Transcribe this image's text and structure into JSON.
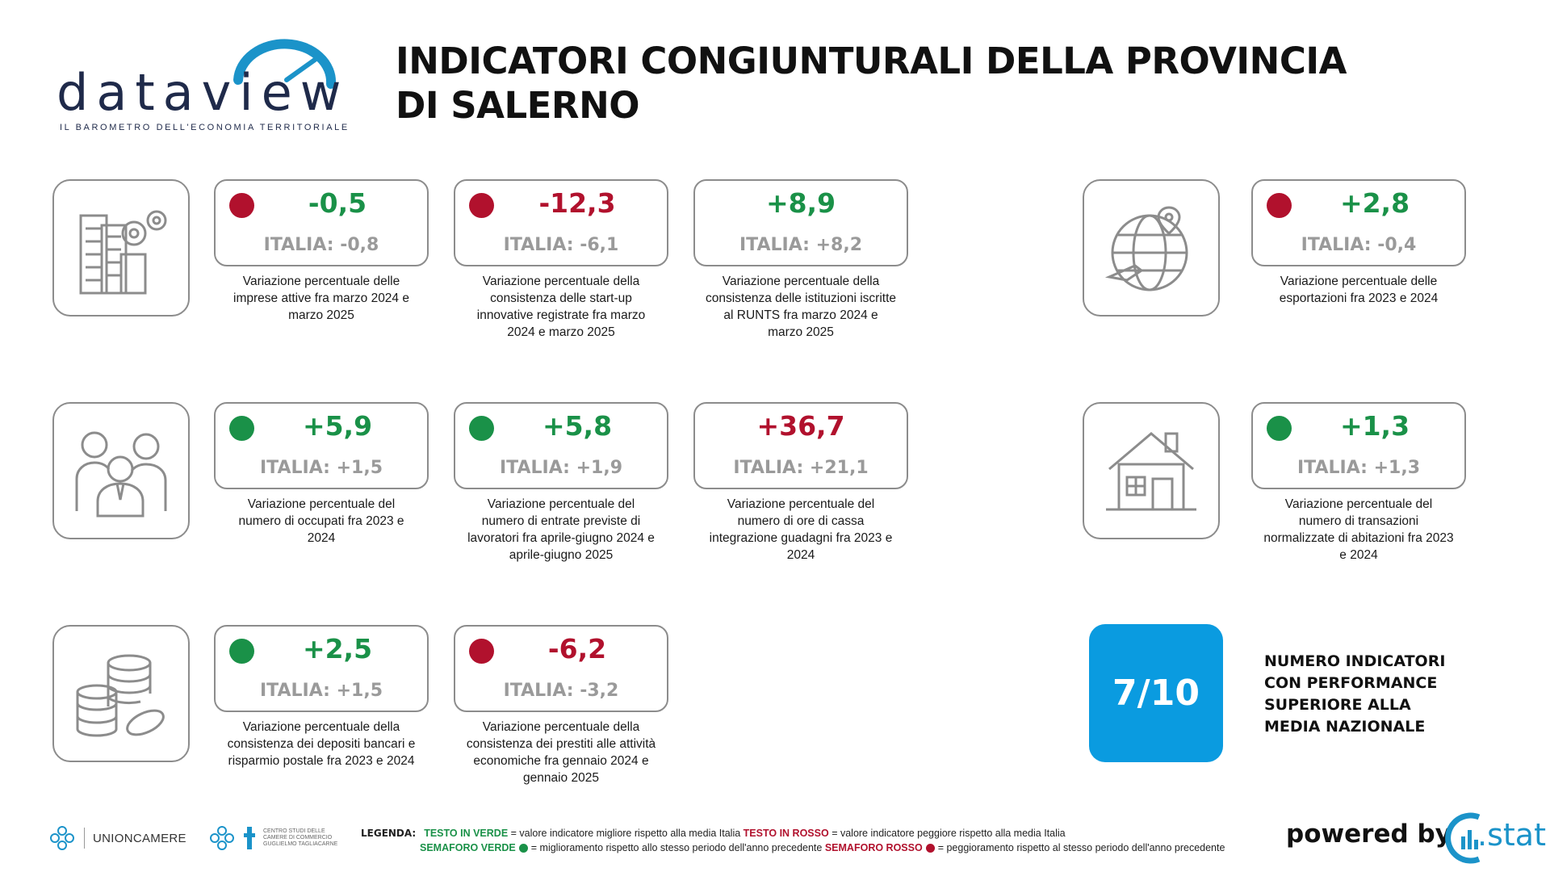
{
  "brand": {
    "name": "dataview",
    "tagline": "IL BAROMETRO DELL'ECONOMIA TERRITORIALE"
  },
  "title": "INDICATORI CONGIUNTURALI DELLA PROVINCIA DI SALERNO",
  "colors": {
    "green": "#1a9148",
    "red": "#b1112d",
    "blue": "#0a9be0",
    "gray": "#8c8c8c"
  },
  "icons": {
    "business": "buildings-gears-icon",
    "export": "globe-plane-icon",
    "people": "people-group-icon",
    "house": "house-icon",
    "money": "coins-stack-icon"
  },
  "indicators": [
    {
      "value": "-0,5",
      "value_color": "green",
      "dot": "red",
      "italia": "ITALIA: -0,8",
      "desc": "Variazione percentuale delle imprese attive fra marzo 2024 e marzo 2025"
    },
    {
      "value": "-12,3",
      "value_color": "red",
      "dot": "red",
      "italia": "ITALIA: -6,1",
      "desc": "Variazione percentuale della consistenza delle start-up innovative registrate fra marzo 2024 e marzo 2025"
    },
    {
      "value": "+8,9",
      "value_color": "green",
      "dot": "none",
      "italia": "ITALIA: +8,2",
      "desc": "Variazione percentuale della consistenza delle istituzioni iscritte al RUNTS fra marzo 2024 e marzo 2025"
    },
    {
      "value": "+2,8",
      "value_color": "green",
      "dot": "red",
      "italia": "ITALIA: -0,4",
      "desc": "Variazione percentuale delle esportazioni fra 2023 e 2024"
    },
    {
      "value": "+5,9",
      "value_color": "green",
      "dot": "green",
      "italia": "ITALIA: +1,5",
      "desc": "Variazione percentuale del numero di occupati fra 2023 e 2024"
    },
    {
      "value": "+5,8",
      "value_color": "green",
      "dot": "green",
      "italia": "ITALIA: +1,9",
      "desc": "Variazione percentuale del numero di entrate previste di lavoratori fra aprile-giugno 2024 e aprile-giugno 2025"
    },
    {
      "value": "+36,7",
      "value_color": "red",
      "dot": "none",
      "italia": "ITALIA: +21,1",
      "desc": "Variazione percentuale del numero di ore di cassa integrazione guadagni fra 2023 e 2024"
    },
    {
      "value": "+1,3",
      "value_color": "green",
      "dot": "green",
      "italia": "ITALIA: +1,3",
      "desc": "Variazione percentuale del numero di transazioni normalizzate di abitazioni fra 2023 e 2024"
    },
    {
      "value": "+2,5",
      "value_color": "green",
      "dot": "green",
      "italia": "ITALIA: +1,5",
      "desc": "Variazione percentuale della consistenza dei depositi bancari e risparmio postale fra 2023 e 2024"
    },
    {
      "value": "-6,2",
      "value_color": "red",
      "dot": "red",
      "italia": "ITALIA: -3,2",
      "desc": "Variazione percentuale della consistenza dei prestiti alle attività economiche fra gennaio 2024 e gennaio 2025"
    }
  ],
  "score": {
    "value": "7/10",
    "label": "NUMERO INDICATORI CON PERFORMANCE SUPERIORE ALLA MEDIA NAZIONALE"
  },
  "footer": {
    "org1": "UNIONCAMERE",
    "org2": "CENTRO STUDI DELLE CAMERE DI COMMERCIO GUGLIELMO TAGLIACARNE",
    "legend_title": "LEGENDA:",
    "legend_green_text": "TESTO IN VERDE",
    "legend_green_desc": "= valore indicatore migliore rispetto alla media Italia",
    "legend_red_text": "TESTO IN ROSSO",
    "legend_red_desc": "= valore indicatore peggiore rispetto alla media Italia",
    "legend_green_dot": "SEMAFORO VERDE",
    "legend_green_dot_desc": "= miglioramento rispetto allo stesso periodo dell'anno precedente",
    "legend_red_dot": "SEMAFORO ROSSO",
    "legend_red_dot_desc": "= peggioramento rispetto al stesso periodo dell'anno precedente",
    "powered_by": "powered by",
    "cstat": ".stat"
  }
}
